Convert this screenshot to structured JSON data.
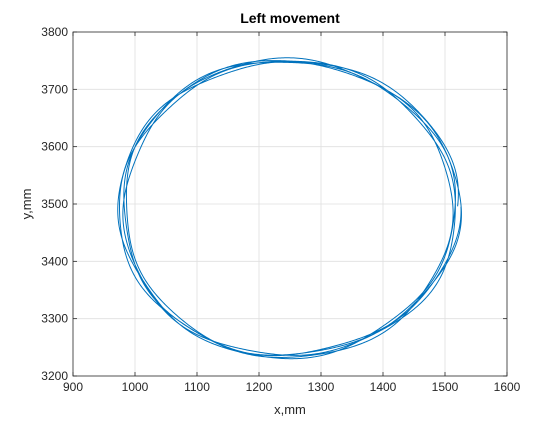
{
  "chart_data": {
    "type": "line",
    "title": "Left movement",
    "xlabel": "x,mm",
    "ylabel": "y,mm",
    "xlim": [
      900,
      1600
    ],
    "ylim": [
      3200,
      3800
    ],
    "xticks": [
      900,
      1000,
      1100,
      1200,
      1300,
      1400,
      1500,
      1600
    ],
    "yticks": [
      3200,
      3300,
      3400,
      3500,
      3600,
      3700,
      3800
    ],
    "grid": true,
    "box": true,
    "series": [
      {
        "color": "#0072BD",
        "shape": "repeated closed loop (approx. 5 laps)",
        "approx_ellipse": {
          "center_x": 1243,
          "center_y": 3493,
          "radius_x": 270,
          "radius_y": 258
        },
        "extents": {
          "x_min": 970,
          "x_max": 1515,
          "y_min": 3233,
          "y_max": 3753
        },
        "laps": 5
      }
    ]
  }
}
